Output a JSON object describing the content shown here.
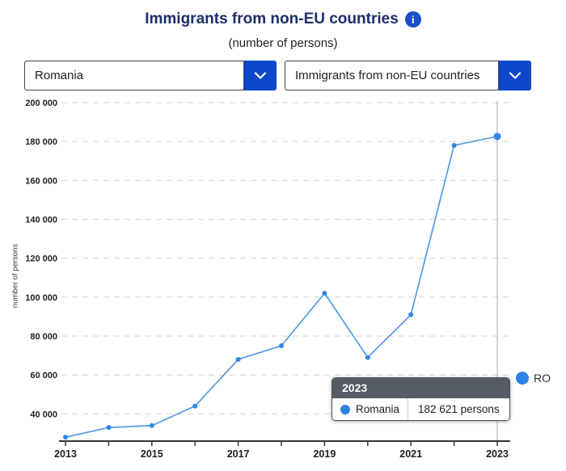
{
  "header": {
    "title": "Immigrants from non-EU countries",
    "subtitle": "(number of persons)"
  },
  "controls": {
    "country_select": {
      "value": "Romania"
    },
    "indicator_select": {
      "value": "Immigrants from non-EU countries"
    }
  },
  "chart_data": {
    "type": "line",
    "x": [
      2013,
      2014,
      2015,
      2016,
      2017,
      2018,
      2019,
      2020,
      2021,
      2022,
      2023
    ],
    "series": [
      {
        "name": "RO",
        "label": "Romania",
        "values": [
          28000,
          33000,
          34000,
          44000,
          68000,
          75000,
          102000,
          69000,
          91000,
          178000,
          182621
        ],
        "color": "#539be4",
        "marker_color": "#2f87e0"
      }
    ],
    "title": "Immigrants from non-EU countries",
    "xlabel": "",
    "ylabel": "number of persons",
    "ylim": [
      26000,
      200000
    ],
    "yticks": [
      40000,
      60000,
      80000,
      100000,
      120000,
      140000,
      160000,
      180000,
      200000
    ],
    "ytick_labels": [
      "40 000",
      "60 000",
      "80 000",
      "100 000",
      "120 000",
      "140 000",
      "160 000",
      "180 000",
      "200 000"
    ],
    "xtick_labels": [
      "2013",
      "2015",
      "2017",
      "2019",
      "2021",
      "2023"
    ],
    "grid": "dashed-horizontal",
    "legend_position": "right",
    "hover_year": 2023
  },
  "tooltip": {
    "header": "2023",
    "series_label": "Romania",
    "value_text": "182 621 persons"
  },
  "colors": {
    "title_navy": "#1c2e6b",
    "accent_blue": "#0e47cb",
    "info_blue": "#1b50c8",
    "grid": "#d2d2d2",
    "axis": "#333333",
    "crosshair": "#aaaaaa",
    "tick_text": "#222222"
  }
}
